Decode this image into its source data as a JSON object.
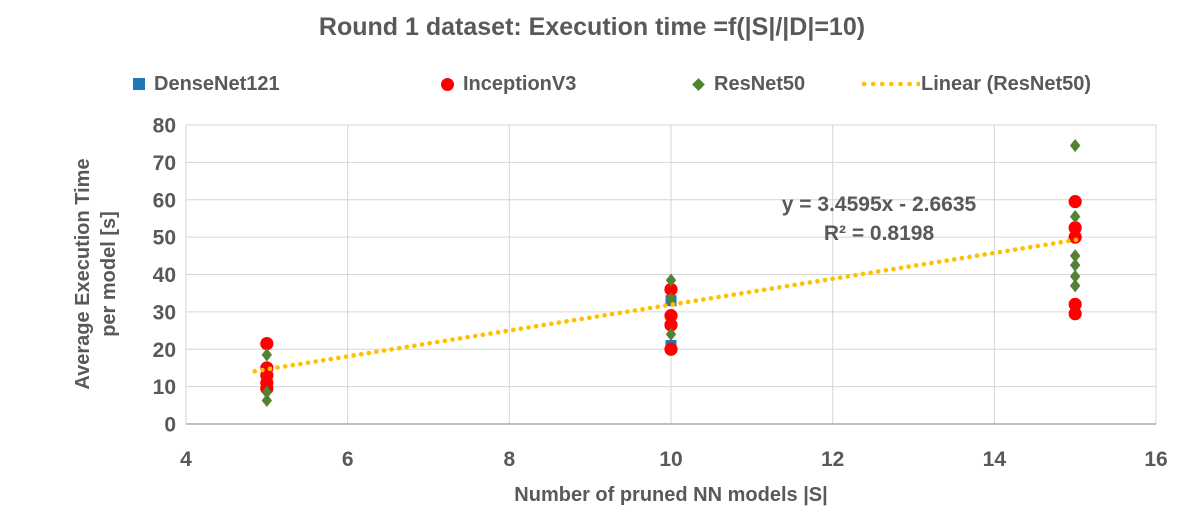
{
  "chart_data": {
    "type": "scatter",
    "title": "Round 1 dataset: Execution time =f(|S|/|D|=10)",
    "xlabel": "Number of pruned NN models |S|",
    "ylabel_lines": [
      "Average Execution Time",
      "per model [s]"
    ],
    "xlim": [
      4,
      16
    ],
    "ylim": [
      0,
      80
    ],
    "xticks": [
      4,
      6,
      8,
      10,
      12,
      14,
      16
    ],
    "yticks": [
      0,
      10,
      20,
      30,
      40,
      50,
      60,
      70,
      80
    ],
    "grid": true,
    "legend_position": "top",
    "series": [
      {
        "name": "DenseNet121",
        "marker": "square",
        "color": "#2177B8",
        "points": [
          [
            10,
            33
          ],
          [
            10,
            21
          ]
        ]
      },
      {
        "name": "InceptionV3",
        "marker": "circle",
        "color": "#FF0000",
        "points": [
          [
            5,
            21.5
          ],
          [
            5,
            15
          ],
          [
            5,
            13
          ],
          [
            5,
            11
          ],
          [
            5,
            9.5
          ],
          [
            10,
            36
          ],
          [
            10,
            29
          ],
          [
            10,
            26.5
          ],
          [
            10,
            20
          ],
          [
            15,
            59.5
          ],
          [
            15,
            52.5
          ],
          [
            15,
            50
          ],
          [
            15,
            32
          ],
          [
            15,
            29.5
          ]
        ]
      },
      {
        "name": "ResNet50",
        "marker": "diamond",
        "color": "#548235",
        "points": [
          [
            5,
            18.5
          ],
          [
            5,
            8.5
          ],
          [
            5,
            6.3
          ],
          [
            10,
            38.5
          ],
          [
            10,
            33.5
          ],
          [
            10,
            24
          ],
          [
            15,
            74.5
          ],
          [
            15,
            55.5
          ],
          [
            15,
            45
          ],
          [
            15,
            42.5
          ],
          [
            15,
            39.5
          ],
          [
            15,
            37
          ]
        ]
      }
    ],
    "trendline": {
      "name": "Linear (ResNet50)",
      "color": "#FFC000",
      "style": "dotted",
      "slope": 3.4595,
      "intercept": -2.6635,
      "x_range": [
        4.85,
        15.1
      ]
    },
    "annotation": {
      "line1": "y = 3.4595x - 2.6635",
      "line2": "R² = 0.8198"
    }
  },
  "styles": {
    "text_color": "#595959",
    "gridline_color": "#D6D6D6",
    "axis_line_color": "#ABABAB"
  }
}
